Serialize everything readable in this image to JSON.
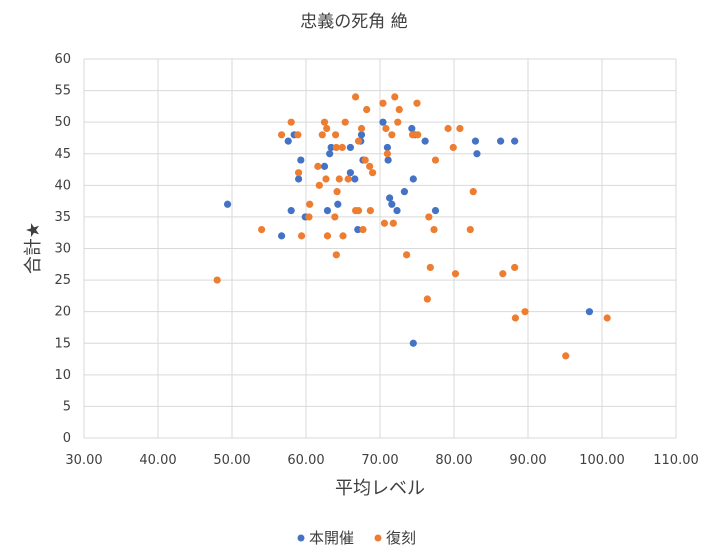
{
  "chart_data": {
    "type": "scatter",
    "title": "忠義の死角 絶",
    "xlabel": "平均レベル",
    "ylabel": "合計★",
    "xlim": [
      30,
      110
    ],
    "ylim": [
      0,
      60
    ],
    "x_ticks": [
      "30.00",
      "40.00",
      "50.00",
      "60.00",
      "70.00",
      "80.00",
      "90.00",
      "100.00",
      "110.00"
    ],
    "y_ticks": [
      "0",
      "5",
      "10",
      "15",
      "20",
      "25",
      "30",
      "35",
      "40",
      "45",
      "50",
      "55",
      "60"
    ],
    "grid": true,
    "legend_position": "bottom",
    "series": [
      {
        "name": "本開催",
        "color": "#4472C4",
        "points": [
          [
            49.4,
            37
          ],
          [
            56.7,
            32
          ],
          [
            57.6,
            47
          ],
          [
            58.0,
            36
          ],
          [
            58.4,
            48
          ],
          [
            59.0,
            41
          ],
          [
            59.3,
            44
          ],
          [
            59.9,
            35
          ],
          [
            62.5,
            43
          ],
          [
            62.9,
            36
          ],
          [
            63.2,
            45
          ],
          [
            63.4,
            46
          ],
          [
            64.3,
            37
          ],
          [
            66.0,
            46
          ],
          [
            66.0,
            42
          ],
          [
            66.6,
            41
          ],
          [
            67.0,
            33
          ],
          [
            67.4,
            47
          ],
          [
            67.5,
            48
          ],
          [
            67.7,
            44
          ],
          [
            70.4,
            50
          ],
          [
            71.0,
            46
          ],
          [
            71.1,
            44
          ],
          [
            71.3,
            38
          ],
          [
            71.6,
            37
          ],
          [
            72.3,
            36
          ],
          [
            73.3,
            39
          ],
          [
            74.3,
            49
          ],
          [
            74.5,
            41
          ],
          [
            74.5,
            15
          ],
          [
            74.7,
            48
          ],
          [
            76.1,
            47
          ],
          [
            77.5,
            36
          ],
          [
            82.9,
            47
          ],
          [
            83.1,
            45
          ],
          [
            86.3,
            47
          ],
          [
            88.2,
            47
          ],
          [
            98.3,
            20
          ]
        ]
      },
      {
        "name": "復刻",
        "color": "#ED7D31",
        "points": [
          [
            48.0,
            25
          ],
          [
            54.0,
            33
          ],
          [
            56.7,
            48
          ],
          [
            58.0,
            50
          ],
          [
            58.9,
            48
          ],
          [
            59.0,
            42
          ],
          [
            59.4,
            32
          ],
          [
            60.4,
            35
          ],
          [
            60.5,
            37
          ],
          [
            61.6,
            43
          ],
          [
            61.8,
            40
          ],
          [
            62.2,
            48
          ],
          [
            62.5,
            50
          ],
          [
            62.7,
            41
          ],
          [
            62.8,
            49
          ],
          [
            62.9,
            32
          ],
          [
            63.9,
            35
          ],
          [
            64.0,
            48
          ],
          [
            64.1,
            46
          ],
          [
            64.1,
            29
          ],
          [
            64.2,
            39
          ],
          [
            64.5,
            41
          ],
          [
            64.9,
            46
          ],
          [
            65.0,
            32
          ],
          [
            65.3,
            50
          ],
          [
            65.7,
            41
          ],
          [
            66.7,
            54
          ],
          [
            66.7,
            36
          ],
          [
            67.1,
            47
          ],
          [
            67.1,
            36
          ],
          [
            67.5,
            49
          ],
          [
            67.7,
            33
          ],
          [
            68.0,
            44
          ],
          [
            68.2,
            52
          ],
          [
            68.6,
            43
          ],
          [
            68.7,
            36
          ],
          [
            69.0,
            42
          ],
          [
            70.4,
            53
          ],
          [
            70.6,
            34
          ],
          [
            70.8,
            49
          ],
          [
            71.0,
            45
          ],
          [
            71.6,
            48
          ],
          [
            71.8,
            34
          ],
          [
            72.0,
            54
          ],
          [
            72.4,
            50
          ],
          [
            72.6,
            52
          ],
          [
            73.6,
            29
          ],
          [
            74.4,
            48
          ],
          [
            75.0,
            53
          ],
          [
            75.1,
            48
          ],
          [
            76.4,
            22
          ],
          [
            76.6,
            35
          ],
          [
            76.8,
            27
          ],
          [
            77.3,
            33
          ],
          [
            77.5,
            44
          ],
          [
            79.2,
            49
          ],
          [
            79.9,
            46
          ],
          [
            80.2,
            26
          ],
          [
            80.8,
            49
          ],
          [
            82.2,
            33
          ],
          [
            82.6,
            39
          ],
          [
            86.6,
            26
          ],
          [
            88.2,
            27
          ],
          [
            88.3,
            19
          ],
          [
            89.6,
            20
          ],
          [
            95.1,
            13
          ],
          [
            100.7,
            19
          ]
        ]
      }
    ]
  }
}
